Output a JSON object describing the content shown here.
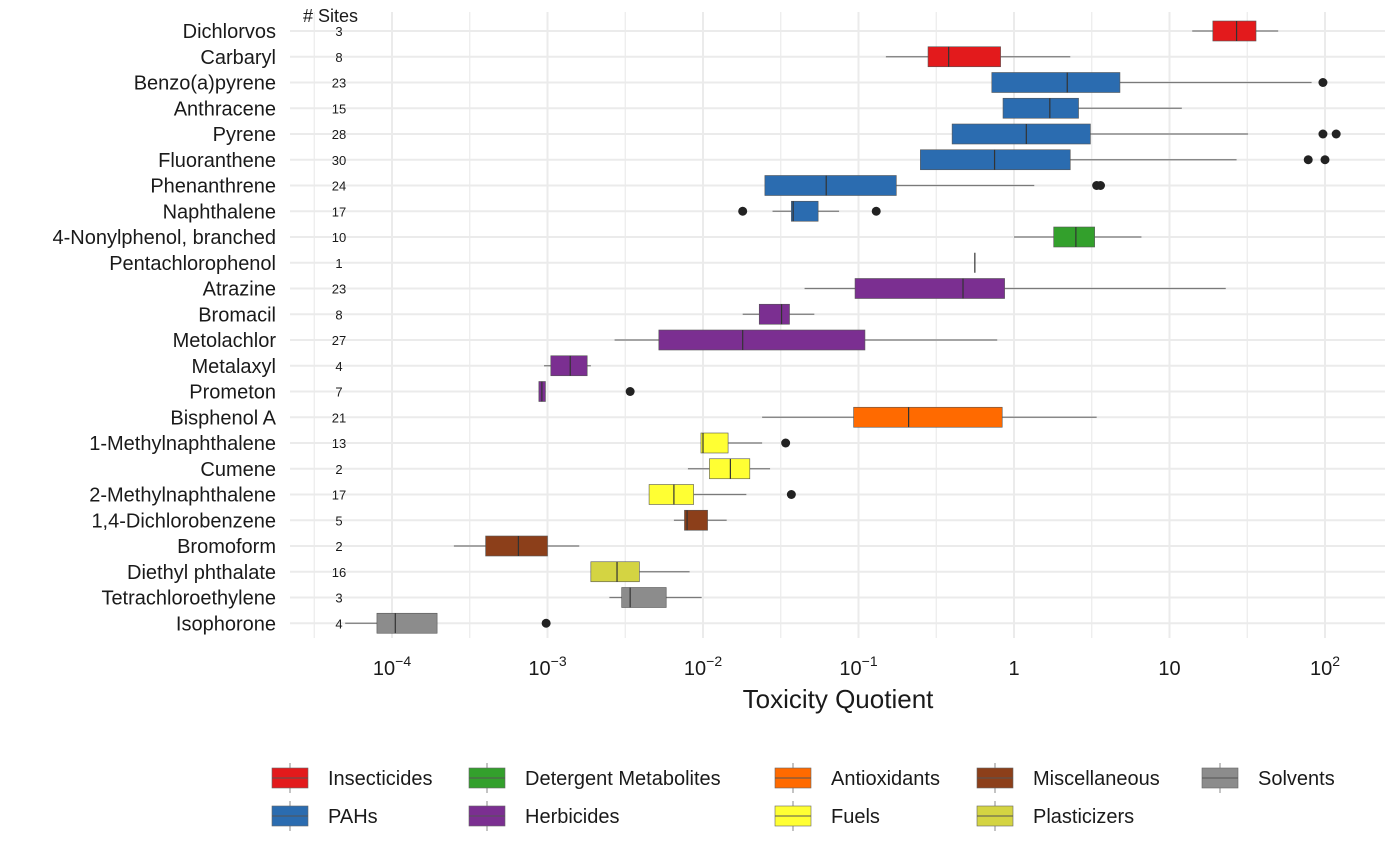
{
  "chart_data": {
    "type": "boxplot",
    "orientation": "horizontal",
    "xlabel": "Toxicity Quotient",
    "x_scale": "log10",
    "xlim": [
      3e-05,
      250
    ],
    "x_ticks": [
      {
        "value": 0.0001,
        "base": "10",
        "exp": "−4"
      },
      {
        "value": 0.001,
        "base": "10",
        "exp": "−3"
      },
      {
        "value": 0.01,
        "base": "10",
        "exp": "−2"
      },
      {
        "value": 0.1,
        "base": "10",
        "exp": "−1"
      },
      {
        "value": 1,
        "base": "1",
        "exp": ""
      },
      {
        "value": 10,
        "base": "10",
        "exp": ""
      },
      {
        "value": 100,
        "base": "10",
        "exp": "2"
      }
    ],
    "sites_header": "# Sites",
    "grid": true,
    "legend_position": "bottom",
    "categories": [
      {
        "name": "Dichlorvos",
        "group": "Insecticides",
        "sites": "3",
        "whisker_low": 14,
        "q1": 19,
        "median": 27,
        "q3": 36,
        "whisker_high": 50,
        "outliers": []
      },
      {
        "name": "Carbaryl",
        "group": "Insecticides",
        "sites": "8",
        "whisker_low": 0.15,
        "q1": 0.28,
        "median": 0.38,
        "q3": 0.82,
        "whisker_high": 2.3,
        "outliers": []
      },
      {
        "name": "Benzo(a)pyrene",
        "group": "PAHs",
        "sites": "23",
        "whisker_low": 0.72,
        "q1": 0.72,
        "median": 2.2,
        "q3": 4.8,
        "whisker_high": 82,
        "outliers": [
          97
        ]
      },
      {
        "name": "Anthracene",
        "group": "PAHs",
        "sites": "15",
        "whisker_low": 0.85,
        "q1": 0.85,
        "median": 1.7,
        "q3": 2.6,
        "whisker_high": 12,
        "outliers": []
      },
      {
        "name": "Pyrene",
        "group": "PAHs",
        "sites": "28",
        "whisker_low": 0.4,
        "q1": 0.4,
        "median": 1.2,
        "q3": 3.1,
        "whisker_high": 32,
        "outliers": [
          97,
          118
        ]
      },
      {
        "name": "Fluoranthene",
        "group": "PAHs",
        "sites": "30",
        "whisker_low": 0.25,
        "q1": 0.25,
        "median": 0.75,
        "q3": 2.3,
        "whisker_high": 27,
        "outliers": [
          78,
          100
        ]
      },
      {
        "name": "Phenanthrene",
        "group": "PAHs",
        "sites": "24",
        "whisker_low": 0.025,
        "q1": 0.025,
        "median": 0.062,
        "q3": 0.175,
        "whisker_high": 1.35,
        "outliers": [
          3.4,
          3.6
        ]
      },
      {
        "name": "Naphthalene",
        "group": "PAHs",
        "sites": "17",
        "whisker_low": 0.028,
        "q1": 0.037,
        "median": 0.038,
        "q3": 0.055,
        "whisker_high": 0.075,
        "outliers": [
          0.018,
          0.13
        ]
      },
      {
        "name": "4-Nonylphenol, branched",
        "group": "Detergent Metabolites",
        "sites": "10",
        "whisker_low": 1.0,
        "q1": 1.8,
        "median": 2.5,
        "q3": 3.3,
        "whisker_high": 6.6,
        "outliers": []
      },
      {
        "name": "Pentachlorophenol",
        "group": "Detergent Metabolites",
        "sites": "1",
        "whisker_low": 0.56,
        "q1": 0.56,
        "median": 0.56,
        "q3": 0.56,
        "whisker_high": 0.56,
        "outliers": []
      },
      {
        "name": "Atrazine",
        "group": "Herbicides",
        "sites": "23",
        "whisker_low": 0.045,
        "q1": 0.095,
        "median": 0.47,
        "q3": 0.87,
        "whisker_high": 23,
        "outliers": []
      },
      {
        "name": "Bromacil",
        "group": "Herbicides",
        "sites": "8",
        "whisker_low": 0.018,
        "q1": 0.023,
        "median": 0.032,
        "q3": 0.036,
        "whisker_high": 0.052,
        "outliers": []
      },
      {
        "name": "Metolachlor",
        "group": "Herbicides",
        "sites": "27",
        "whisker_low": 0.0027,
        "q1": 0.0052,
        "median": 0.018,
        "q3": 0.11,
        "whisker_high": 0.78,
        "outliers": []
      },
      {
        "name": "Metalaxyl",
        "group": "Herbicides",
        "sites": "4",
        "whisker_low": 0.00095,
        "q1": 0.00105,
        "median": 0.0014,
        "q3": 0.0018,
        "whisker_high": 0.0019,
        "outliers": []
      },
      {
        "name": "Prometon",
        "group": "Herbicides",
        "sites": "7",
        "whisker_low": 0.00088,
        "q1": 0.00088,
        "median": 0.00092,
        "q3": 0.00097,
        "whisker_high": 0.00097,
        "outliers": [
          0.0034
        ]
      },
      {
        "name": "Bisphenol A",
        "group": "Antioxidants",
        "sites": "21",
        "whisker_low": 0.024,
        "q1": 0.093,
        "median": 0.21,
        "q3": 0.84,
        "whisker_high": 3.4,
        "outliers": []
      },
      {
        "name": "1-Methylnaphthalene",
        "group": "Fuels",
        "sites": "13",
        "whisker_low": 0.0097,
        "q1": 0.0097,
        "median": 0.01,
        "q3": 0.0145,
        "whisker_high": 0.024,
        "outliers": [
          0.034
        ]
      },
      {
        "name": "Cumene",
        "group": "Fuels",
        "sites": "2",
        "whisker_low": 0.008,
        "q1": 0.011,
        "median": 0.015,
        "q3": 0.02,
        "whisker_high": 0.027,
        "outliers": []
      },
      {
        "name": "2-Methylnaphthalene",
        "group": "Fuels",
        "sites": "17",
        "whisker_low": 0.0045,
        "q1": 0.0045,
        "median": 0.0065,
        "q3": 0.0087,
        "whisker_high": 0.019,
        "outliers": [
          0.037
        ]
      },
      {
        "name": "1,4-Dichlorobenzene",
        "group": "Miscellaneous",
        "sites": "5",
        "whisker_low": 0.0065,
        "q1": 0.0076,
        "median": 0.0079,
        "q3": 0.0107,
        "whisker_high": 0.0142,
        "outliers": []
      },
      {
        "name": "Bromoform",
        "group": "Miscellaneous",
        "sites": "2",
        "whisker_low": 0.00025,
        "q1": 0.0004,
        "median": 0.00065,
        "q3": 0.001,
        "whisker_high": 0.0016,
        "outliers": []
      },
      {
        "name": "Diethyl phthalate",
        "group": "Plasticizers",
        "sites": "16",
        "whisker_low": 0.0019,
        "q1": 0.0019,
        "median": 0.0028,
        "q3": 0.0039,
        "whisker_high": 0.0082,
        "outliers": []
      },
      {
        "name": "Tetrachloroethylene",
        "group": "Solvents",
        "sites": "3",
        "whisker_low": 0.0025,
        "q1": 0.003,
        "median": 0.0034,
        "q3": 0.0058,
        "whisker_high": 0.0098,
        "outliers": []
      },
      {
        "name": "Isophorone",
        "group": "Solvents",
        "sites": "4",
        "whisker_low": 5e-05,
        "q1": 8e-05,
        "median": 0.000105,
        "q3": 0.000195,
        "whisker_high": 0.000195,
        "outliers": [
          0.00098
        ]
      }
    ],
    "legend": [
      {
        "name": "Insecticides",
        "color": "#e31a1c"
      },
      {
        "name": "Detergent Metabolites",
        "color": "#33a02c"
      },
      {
        "name": "Antioxidants",
        "color": "#ff6a00"
      },
      {
        "name": "Miscellaneous",
        "color": "#8c3f1a"
      },
      {
        "name": "Solvents",
        "color": "#8c8c8c"
      },
      {
        "name": "PAHs",
        "color": "#2b6cb0"
      },
      {
        "name": "Herbicides",
        "color": "#7b2f91"
      },
      {
        "name": "Fuels",
        "color": "#ffff33"
      },
      {
        "name": "Plasticizers",
        "color": "#d4d442"
      }
    ],
    "colors": {
      "Insecticides": "#e31a1c",
      "PAHs": "#2b6cb0",
      "Detergent Metabolites": "#33a02c",
      "Herbicides": "#7b2f91",
      "Antioxidants": "#ff6a00",
      "Fuels": "#ffff33",
      "Miscellaneous": "#8c3f1a",
      "Plasticizers": "#d4d442",
      "Solvents": "#8c8c8c"
    }
  }
}
